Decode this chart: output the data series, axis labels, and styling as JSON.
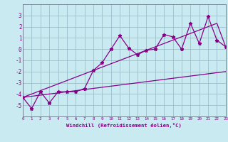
{
  "xlabel": "Windchill (Refroidissement éolien,°C)",
  "background_color": "#c8eaf0",
  "grid_color": "#9bbfcc",
  "line_color": "#880088",
  "x_values": [
    0,
    1,
    2,
    3,
    4,
    5,
    6,
    7,
    8,
    9,
    10,
    11,
    12,
    13,
    14,
    15,
    16,
    17,
    18,
    19,
    20,
    21,
    22,
    23
  ],
  "y_data": [
    -4.3,
    -5.3,
    -3.8,
    -4.8,
    -3.8,
    -3.8,
    -3.8,
    -3.5,
    -1.9,
    -1.2,
    0.0,
    1.2,
    0.1,
    -0.5,
    -0.1,
    0.0,
    1.3,
    1.1,
    0.0,
    2.3,
    0.5,
    2.9,
    0.8,
    0.2
  ],
  "y_lower": [
    -4.3,
    -4.2,
    -4.1,
    -4.0,
    -3.9,
    -3.8,
    -3.7,
    -3.6,
    -3.5,
    -3.4,
    -3.3,
    -3.2,
    -3.1,
    -3.0,
    -2.9,
    -2.8,
    -2.7,
    -2.6,
    -2.5,
    -2.4,
    -2.3,
    -2.2,
    -2.1,
    -2.0
  ],
  "y_upper": [
    -4.3,
    -4.0,
    -3.7,
    -3.4,
    -3.1,
    -2.8,
    -2.5,
    -2.2,
    -1.9,
    -1.6,
    -1.3,
    -1.0,
    -0.7,
    -0.4,
    -0.1,
    0.2,
    0.5,
    0.8,
    1.1,
    1.4,
    1.7,
    2.0,
    2.3,
    0.2
  ],
  "ylim": [
    -6,
    4
  ],
  "xlim": [
    0,
    23
  ],
  "yticks": [
    -5,
    -4,
    -3,
    -2,
    -1,
    0,
    1,
    2,
    3
  ],
  "xticks": [
    0,
    1,
    2,
    3,
    4,
    5,
    6,
    7,
    8,
    9,
    10,
    11,
    12,
    13,
    14,
    15,
    16,
    17,
    18,
    19,
    20,
    21,
    22,
    23
  ]
}
